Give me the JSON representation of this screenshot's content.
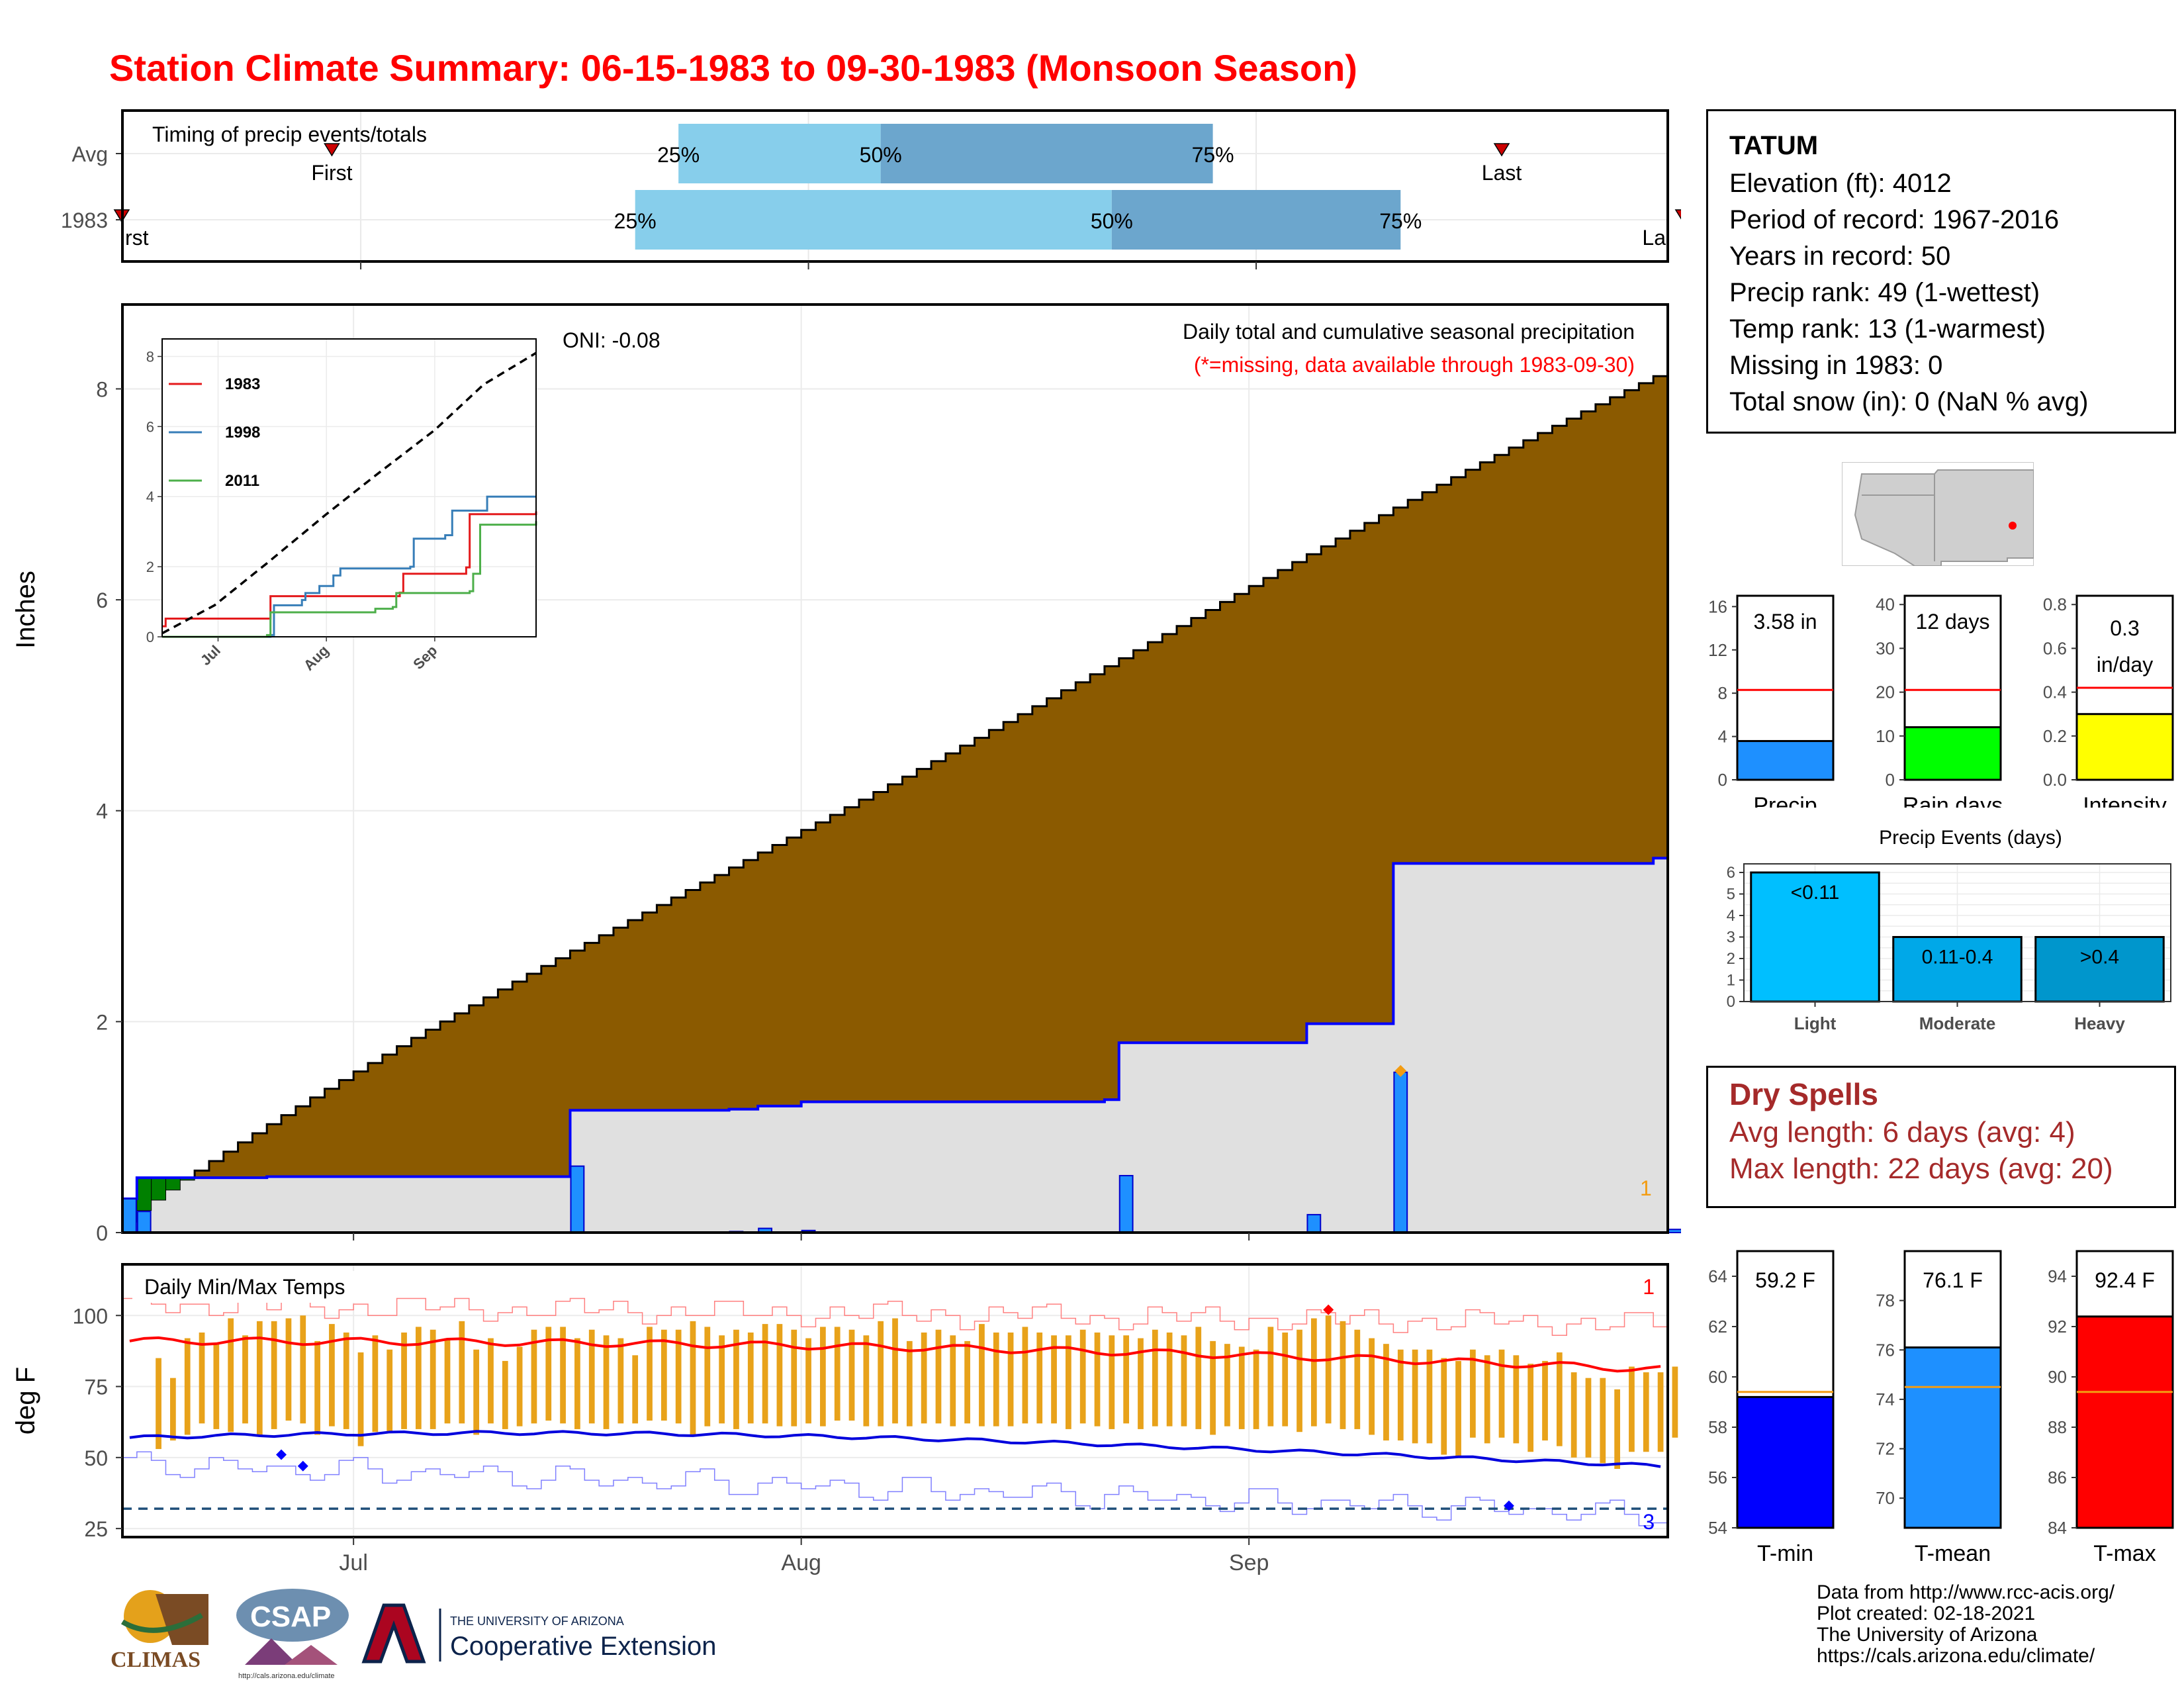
{
  "title": "Station Climate Summary: 06-15-1983 to 09-30-1983 (Monsoon Season)",
  "station": {
    "name": "TATUM",
    "lines": [
      "Elevation (ft): 4012",
      "Period of record: 1967-2016",
      "Years in record: 50",
      "Precip rank: 49 (1-wettest)",
      "Temp rank: 13 (1-warmest)",
      "Missing in 1983: 0",
      "Total snow (in): 0 (NaN % avg)"
    ]
  },
  "dry_spells": {
    "title": "Dry Spells",
    "avg": "Avg length: 6 days (avg: 4)",
    "max": "Max length: 22 days (avg: 20)"
  },
  "credits": {
    "lines": [
      "Data from http://www.rcc-acis.org/",
      "Plot created: 02-18-2021",
      "The University of Arizona",
      "https://cals.arizona.edu/climate/"
    ]
  },
  "logos": {
    "climas": "CLIMAS",
    "csap": "CSAP",
    "csap_url": "http://cals.arizona.edu/climate",
    "ua_line1": "THE UNIVERSITY OF ARIZONA",
    "ua_line2": "Cooperative Extension"
  },
  "chart_data": [
    {
      "id": "timing",
      "type": "bar",
      "title": "Timing of precip events/totals",
      "rows": [
        {
          "label": "Avg",
          "p25": "1983-07-23",
          "p50": "1983-08-06",
          "p75": "1983-08-29",
          "first": "1983-06-29",
          "last": "1983-09-18"
        },
        {
          "label": "1983",
          "p25": "1983-07-20",
          "p50": "1983-08-22",
          "p75": "1983-09-11",
          "first": "1983-06-15",
          "last": "1983-09-30"
        }
      ],
      "labels": {
        "p25": "25%",
        "p50": "50%",
        "p75": "75%",
        "first": "First",
        "last": "Last",
        "first_clipped": "rst",
        "last_clipped": "La"
      },
      "colors": {
        "light": "#87ceeb",
        "dark": "#6ca6cd",
        "marker": "#cc0000"
      }
    },
    {
      "id": "precip",
      "type": "area",
      "title": "Daily total and cumulative seasonal precipitation",
      "subtitle": "(*=missing, data available through 1983-09-30)",
      "ylabel": "Inches",
      "ylim": [
        0,
        8.8
      ],
      "yticks": [
        0,
        2,
        4,
        6,
        8
      ],
      "x_range": [
        "1983-06-15",
        "1983-09-30"
      ],
      "x_ticks": [
        {
          "label": "Jul",
          "date": "1983-07-01"
        },
        {
          "label": "Aug",
          "date": "1983-08-01"
        },
        {
          "label": "Sep",
          "date": "1983-09-01"
        }
      ],
      "oni": "ONI: -0.08",
      "avg_cumulative": {
        "start": "1983-06-15",
        "end": "1983-09-30",
        "values_start": 0.1,
        "values_end": 8.1
      },
      "cumulative_1983": [
        {
          "date": "1983-06-15",
          "value": 0.32
        },
        {
          "date": "1983-06-16",
          "value": 0.52
        },
        {
          "date": "1983-06-24",
          "value": 0.52
        },
        {
          "date": "1983-06-25",
          "value": 0.53
        },
        {
          "date": "1983-07-15",
          "value": 0.53
        },
        {
          "date": "1983-07-16",
          "value": 1.16
        },
        {
          "date": "1983-07-27",
          "value": 1.17
        },
        {
          "date": "1983-07-29",
          "value": 1.2
        },
        {
          "date": "1983-08-01",
          "value": 1.24
        },
        {
          "date": "1983-08-22",
          "value": 1.26
        },
        {
          "date": "1983-08-23",
          "value": 1.8
        },
        {
          "date": "1983-09-05",
          "value": 1.98
        },
        {
          "date": "1983-09-11",
          "value": 3.5
        },
        {
          "date": "1983-09-29",
          "value": 3.55
        },
        {
          "date": "1983-09-30",
          "value": 3.58
        }
      ],
      "daily_1983": [
        {
          "date": "1983-06-15",
          "value": 0.32
        },
        {
          "date": "1983-06-16",
          "value": 0.2
        },
        {
          "date": "1983-07-16",
          "value": 0.63
        },
        {
          "date": "1983-07-27",
          "value": 0.01
        },
        {
          "date": "1983-07-29",
          "value": 0.04
        },
        {
          "date": "1983-08-01",
          "value": 0.02
        },
        {
          "date": "1983-08-23",
          "value": 0.54
        },
        {
          "date": "1983-09-05",
          "value": 0.17
        },
        {
          "date": "1983-09-11",
          "value": 1.52
        },
        {
          "date": "1983-09-30",
          "value": 0.03
        }
      ],
      "marker_date": "1983-09-11",
      "marker_label": "1",
      "colors": {
        "avg_fill": "#8b5a00",
        "below_fill": "#e0e0e0",
        "above_fill": "#008000",
        "line": "#0000ff",
        "bar": "#1e90ff"
      }
    },
    {
      "id": "inset",
      "type": "line",
      "ylim": [
        0,
        8
      ],
      "yticks": [
        0,
        2,
        4,
        6,
        8
      ],
      "x_range": [
        "1983-06-15",
        "1983-09-30"
      ],
      "x_ticks": [
        {
          "label": "Jul",
          "date": "1983-07-01"
        },
        {
          "label": "Aug",
          "date": "1983-08-01"
        },
        {
          "label": "Sep",
          "date": "1983-09-01"
        }
      ],
      "series": [
        {
          "name": "1983",
          "color": "#e41a1c",
          "points": [
            [
              "1983-06-15",
              0.3
            ],
            [
              "1983-06-16",
              0.52
            ],
            [
              "1983-07-16",
              0.53
            ],
            [
              "1983-07-16",
              1.16
            ],
            [
              "1983-08-22",
              1.26
            ],
            [
              "1983-08-23",
              1.8
            ],
            [
              "1983-09-10",
              1.98
            ],
            [
              "1983-09-11",
              3.5
            ],
            [
              "1983-09-30",
              3.58
            ]
          ]
        },
        {
          "name": "1998",
          "color": "#377eb8",
          "points": [
            [
              "1983-06-15",
              0
            ],
            [
              "1983-07-16",
              0.05
            ],
            [
              "1983-07-17",
              0.9
            ],
            [
              "1983-07-25",
              1.05
            ],
            [
              "1983-07-26",
              1.25
            ],
            [
              "1983-07-30",
              1.45
            ],
            [
              "1983-08-03",
              1.75
            ],
            [
              "1983-08-05",
              1.95
            ],
            [
              "1983-08-25",
              2.0
            ],
            [
              "1983-08-26",
              2.8
            ],
            [
              "1983-09-04",
              2.9
            ],
            [
              "1983-09-06",
              3.6
            ],
            [
              "1983-09-15",
              3.6
            ],
            [
              "1983-09-16",
              4.0
            ],
            [
              "1983-09-30",
              4.0
            ]
          ]
        },
        {
          "name": "2011",
          "color": "#4daf4a",
          "points": [
            [
              "1983-06-15",
              0
            ],
            [
              "1983-07-15",
              0.05
            ],
            [
              "1983-07-16",
              0.7
            ],
            [
              "1983-08-15",
              0.8
            ],
            [
              "1983-08-20",
              0.85
            ],
            [
              "1983-08-21",
              1.25
            ],
            [
              "1983-09-11",
              1.3
            ],
            [
              "1983-09-12",
              1.8
            ],
            [
              "1983-09-14",
              3.2
            ],
            [
              "1983-09-30",
              3.3
            ]
          ]
        },
        {
          "name": "avg",
          "color": "#000000",
          "dashed": true,
          "points": [
            [
              "1983-06-15",
              0.1
            ],
            [
              "1983-06-30",
              0.9
            ],
            [
              "1983-07-15",
              2.1
            ],
            [
              "1983-08-01",
              3.5
            ],
            [
              "1983-08-15",
              4.6
            ],
            [
              "1983-09-01",
              5.9
            ],
            [
              "1983-09-15",
              7.2
            ],
            [
              "1983-09-30",
              8.1
            ]
          ]
        }
      ]
    },
    {
      "id": "bars-precip",
      "type": "bar",
      "title": "Precip",
      "value_label": "3.58 in",
      "value": 3.58,
      "avg": 8.3,
      "ylim": [
        0,
        17
      ],
      "yticks": [
        0,
        4,
        8,
        12,
        16
      ],
      "color": "#1e90ff"
    },
    {
      "id": "bars-raindays",
      "type": "bar",
      "title": "Rain days",
      "value_label": "12 days",
      "value": 12,
      "avg": 20.5,
      "ylim": [
        0,
        42
      ],
      "yticks": [
        0,
        10,
        20,
        30,
        40
      ],
      "color": "#00ff00"
    },
    {
      "id": "bars-intensity",
      "type": "bar",
      "title": "Intensity",
      "value_label": "0.3",
      "value_label2": "in/day",
      "value": 0.3,
      "avg": 0.42,
      "ylim": [
        0,
        0.84
      ],
      "yticks": [
        0.0,
        0.2,
        0.4,
        0.6,
        0.8
      ],
      "ytick_labels": [
        "0.0",
        "0.2",
        "0.4",
        "0.6",
        "0.8"
      ],
      "color": "#ffff00"
    },
    {
      "id": "events",
      "type": "bar",
      "title": "Precip Events (days)",
      "categories": [
        "Light",
        "Moderate",
        "Heavy"
      ],
      "values": [
        6,
        3,
        3
      ],
      "bar_labels": [
        "<0.11",
        "0.11-0.4",
        ">0.4"
      ],
      "ylim": [
        0,
        6.4
      ],
      "yticks": [
        0,
        1,
        2,
        3,
        4,
        5,
        6
      ],
      "colors": [
        "#00bfff",
        "#00a8e8",
        "#0096cc"
      ]
    },
    {
      "id": "temps",
      "type": "line",
      "title": "Daily Min/Max Temps",
      "ylabel": "deg F",
      "ylim": [
        22,
        118
      ],
      "yticks": [
        25,
        50,
        75,
        100
      ],
      "freeze_line": 32,
      "x_range": [
        "1983-06-15",
        "1983-09-30"
      ],
      "x_ticks": [
        {
          "label": "Jul",
          "date": "1983-07-01"
        },
        {
          "label": "Aug",
          "date": "1983-08-01"
        },
        {
          "label": "Sep",
          "date": "1983-09-01"
        }
      ],
      "tmax": [
        null,
        null,
        85,
        78,
        92,
        94,
        90,
        99,
        93,
        98,
        98,
        99,
        100,
        91,
        97,
        94,
        87,
        93,
        88,
        94,
        96,
        95,
        92,
        98,
        88,
        92,
        84,
        89,
        95,
        96,
        96,
        92,
        95,
        93,
        92,
        86,
        96,
        95,
        95,
        98,
        96,
        93,
        95,
        94,
        97,
        97,
        95,
        92,
        96,
        96,
        95,
        93,
        98,
        99,
        91,
        94,
        95,
        93,
        91,
        97,
        94,
        94,
        96,
        94,
        93,
        93,
        95,
        94,
        93,
        93,
        92,
        95,
        94,
        93,
        96,
        91,
        90,
        89,
        88,
        96,
        94,
        95,
        99,
        100,
        98,
        95,
        92,
        90,
        88,
        88,
        88,
        85,
        84,
        88,
        86,
        88,
        86,
        83,
        84,
        87,
        80,
        78,
        78,
        74,
        82,
        80,
        80,
        82
      ],
      "tmin": [
        null,
        null,
        53,
        56,
        58,
        62,
        60,
        59,
        62,
        58,
        60,
        63,
        62,
        58,
        61,
        60,
        54,
        59,
        59,
        60,
        60,
        60,
        62,
        62,
        58,
        62,
        60,
        61,
        62,
        63,
        62,
        60,
        62,
        60,
        62,
        62,
        63,
        63,
        62,
        58,
        61,
        62,
        60,
        62,
        62,
        61,
        61,
        62,
        61,
        63,
        63,
        61,
        61,
        62,
        61,
        62,
        62,
        61,
        62,
        61,
        61,
        61,
        62,
        62,
        62,
        60,
        62,
        61,
        60,
        62,
        60,
        61,
        61,
        61,
        60,
        58,
        61,
        60,
        60,
        61,
        61,
        59,
        61,
        62,
        60,
        60,
        58,
        56,
        56,
        55,
        55,
        51,
        50,
        57,
        55,
        57,
        55,
        52,
        56,
        54,
        50,
        50,
        48,
        46,
        52,
        52,
        52,
        57
      ],
      "avg_max_start": 91,
      "avg_max_end": 81,
      "avg_min_start": 57,
      "avg_min_end": 47,
      "rec_max_start": 104,
      "rec_max_end": 97,
      "rec_min_start": 48,
      "rec_min_end": 30,
      "label_top": "1",
      "label_bottom": "3",
      "colors": {
        "bar": "#e8a21a",
        "avgmax": "#ff0000",
        "avgmin": "#0000dd",
        "recmax": "#ff8080",
        "recmin": "#8080ff",
        "freeze": "#1f4e79"
      }
    },
    {
      "id": "bars-tmin",
      "type": "bar",
      "title": "T-min",
      "value_label": "59.2 F",
      "value": 59.2,
      "avg": 59.4,
      "ylim": [
        54,
        65
      ],
      "yticks": [
        54,
        56,
        58,
        60,
        62,
        64
      ],
      "color": "#0000ff"
    },
    {
      "id": "bars-tmean",
      "type": "bar",
      "title": "T-mean",
      "value_label": "76.1 F",
      "value": 76.1,
      "avg": 74.5,
      "ylim": [
        68.8,
        80
      ],
      "yticks": [
        70,
        72,
        74,
        76,
        78
      ],
      "color": "#1e90ff"
    },
    {
      "id": "bars-tmax",
      "type": "bar",
      "title": "T-max",
      "value_label": "92.4 F",
      "value": 92.4,
      "avg": 89.4,
      "ylim": [
        84,
        95
      ],
      "yticks": [
        84,
        86,
        88,
        90,
        92,
        94
      ],
      "color": "#ff0000"
    }
  ]
}
